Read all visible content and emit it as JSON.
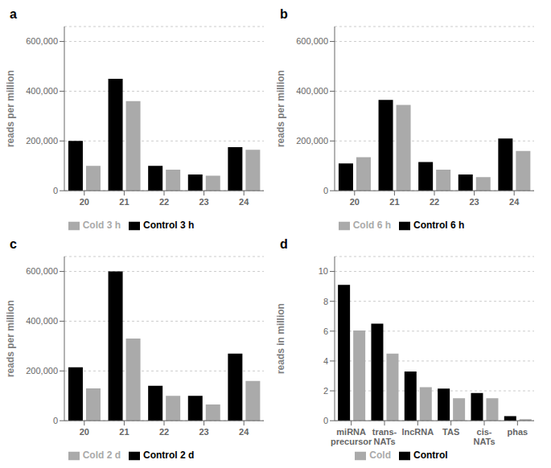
{
  "chart_data": [
    {
      "type": "bar",
      "title": "a",
      "ylabel": "reads per million",
      "categories": [
        "20",
        "21",
        "22",
        "23",
        "24"
      ],
      "series": [
        {
          "name": "Control 3 h",
          "color": "#000000",
          "values": [
            200000,
            450000,
            100000,
            65000,
            175000
          ]
        },
        {
          "name": "Cold 3 h",
          "color": "#aaaaaa",
          "values": [
            100000,
            360000,
            85000,
            60000,
            165000
          ]
        }
      ],
      "ylim": [
        0,
        660000
      ],
      "yticks": [
        0,
        {
          "value": 200000,
          "label": "200,000"
        },
        {
          "value": 400000,
          "label": "400,000"
        },
        {
          "value": 600000,
          "label": "600,000"
        }
      ],
      "grid": true,
      "legend": "bottom"
    },
    {
      "type": "bar",
      "title": "b",
      "ylabel": "reads per million",
      "categories": [
        "20",
        "21",
        "22",
        "23",
        "24"
      ],
      "series": [
        {
          "name": "Control 6 h",
          "color": "#000000",
          "values": [
            110000,
            365000,
            115000,
            65000,
            210000
          ]
        },
        {
          "name": "Cold 6 h",
          "color": "#aaaaaa",
          "values": [
            135000,
            345000,
            85000,
            55000,
            160000
          ]
        }
      ],
      "ylim": [
        0,
        660000
      ],
      "yticks": [
        0,
        {
          "value": 200000,
          "label": "200,000"
        },
        {
          "value": 400000,
          "label": "400,000"
        },
        {
          "value": 600000,
          "label": "600,000"
        }
      ],
      "grid": true,
      "legend": "bottom"
    },
    {
      "type": "bar",
      "title": "c",
      "ylabel": "reads per million",
      "categories": [
        "20",
        "21",
        "22",
        "23",
        "24"
      ],
      "series": [
        {
          "name": "Control 2 d",
          "color": "#000000",
          "values": [
            215000,
            600000,
            140000,
            100000,
            270000
          ]
        },
        {
          "name": "Cold 2 d",
          "color": "#aaaaaa",
          "values": [
            130000,
            330000,
            100000,
            65000,
            160000
          ]
        }
      ],
      "ylim": [
        0,
        660000
      ],
      "yticks": [
        0,
        {
          "value": 200000,
          "label": "200,000"
        },
        {
          "value": 400000,
          "label": "400,000"
        },
        {
          "value": 600000,
          "label": "600,000"
        }
      ],
      "grid": true,
      "legend": "bottom"
    },
    {
      "type": "bar",
      "title": "d",
      "ylabel": "reads in million",
      "categories": [
        "miRNA\nprecursor",
        "trans-\nNATs",
        "lncRNA",
        "TAS",
        "cis-\nNATs",
        "phas"
      ],
      "series": [
        {
          "name": "Control",
          "color": "#000000",
          "values": [
            9.1,
            6.5,
            3.3,
            2.15,
            1.85,
            0.3
          ]
        },
        {
          "name": "Cold",
          "color": "#aaaaaa",
          "values": [
            6.05,
            4.5,
            2.25,
            1.5,
            1.5,
            0.1
          ]
        }
      ],
      "ylim": [
        0,
        11
      ],
      "yticks": [
        0,
        2,
        4,
        6,
        8,
        10
      ],
      "grid": true,
      "legend": "bottom"
    }
  ]
}
